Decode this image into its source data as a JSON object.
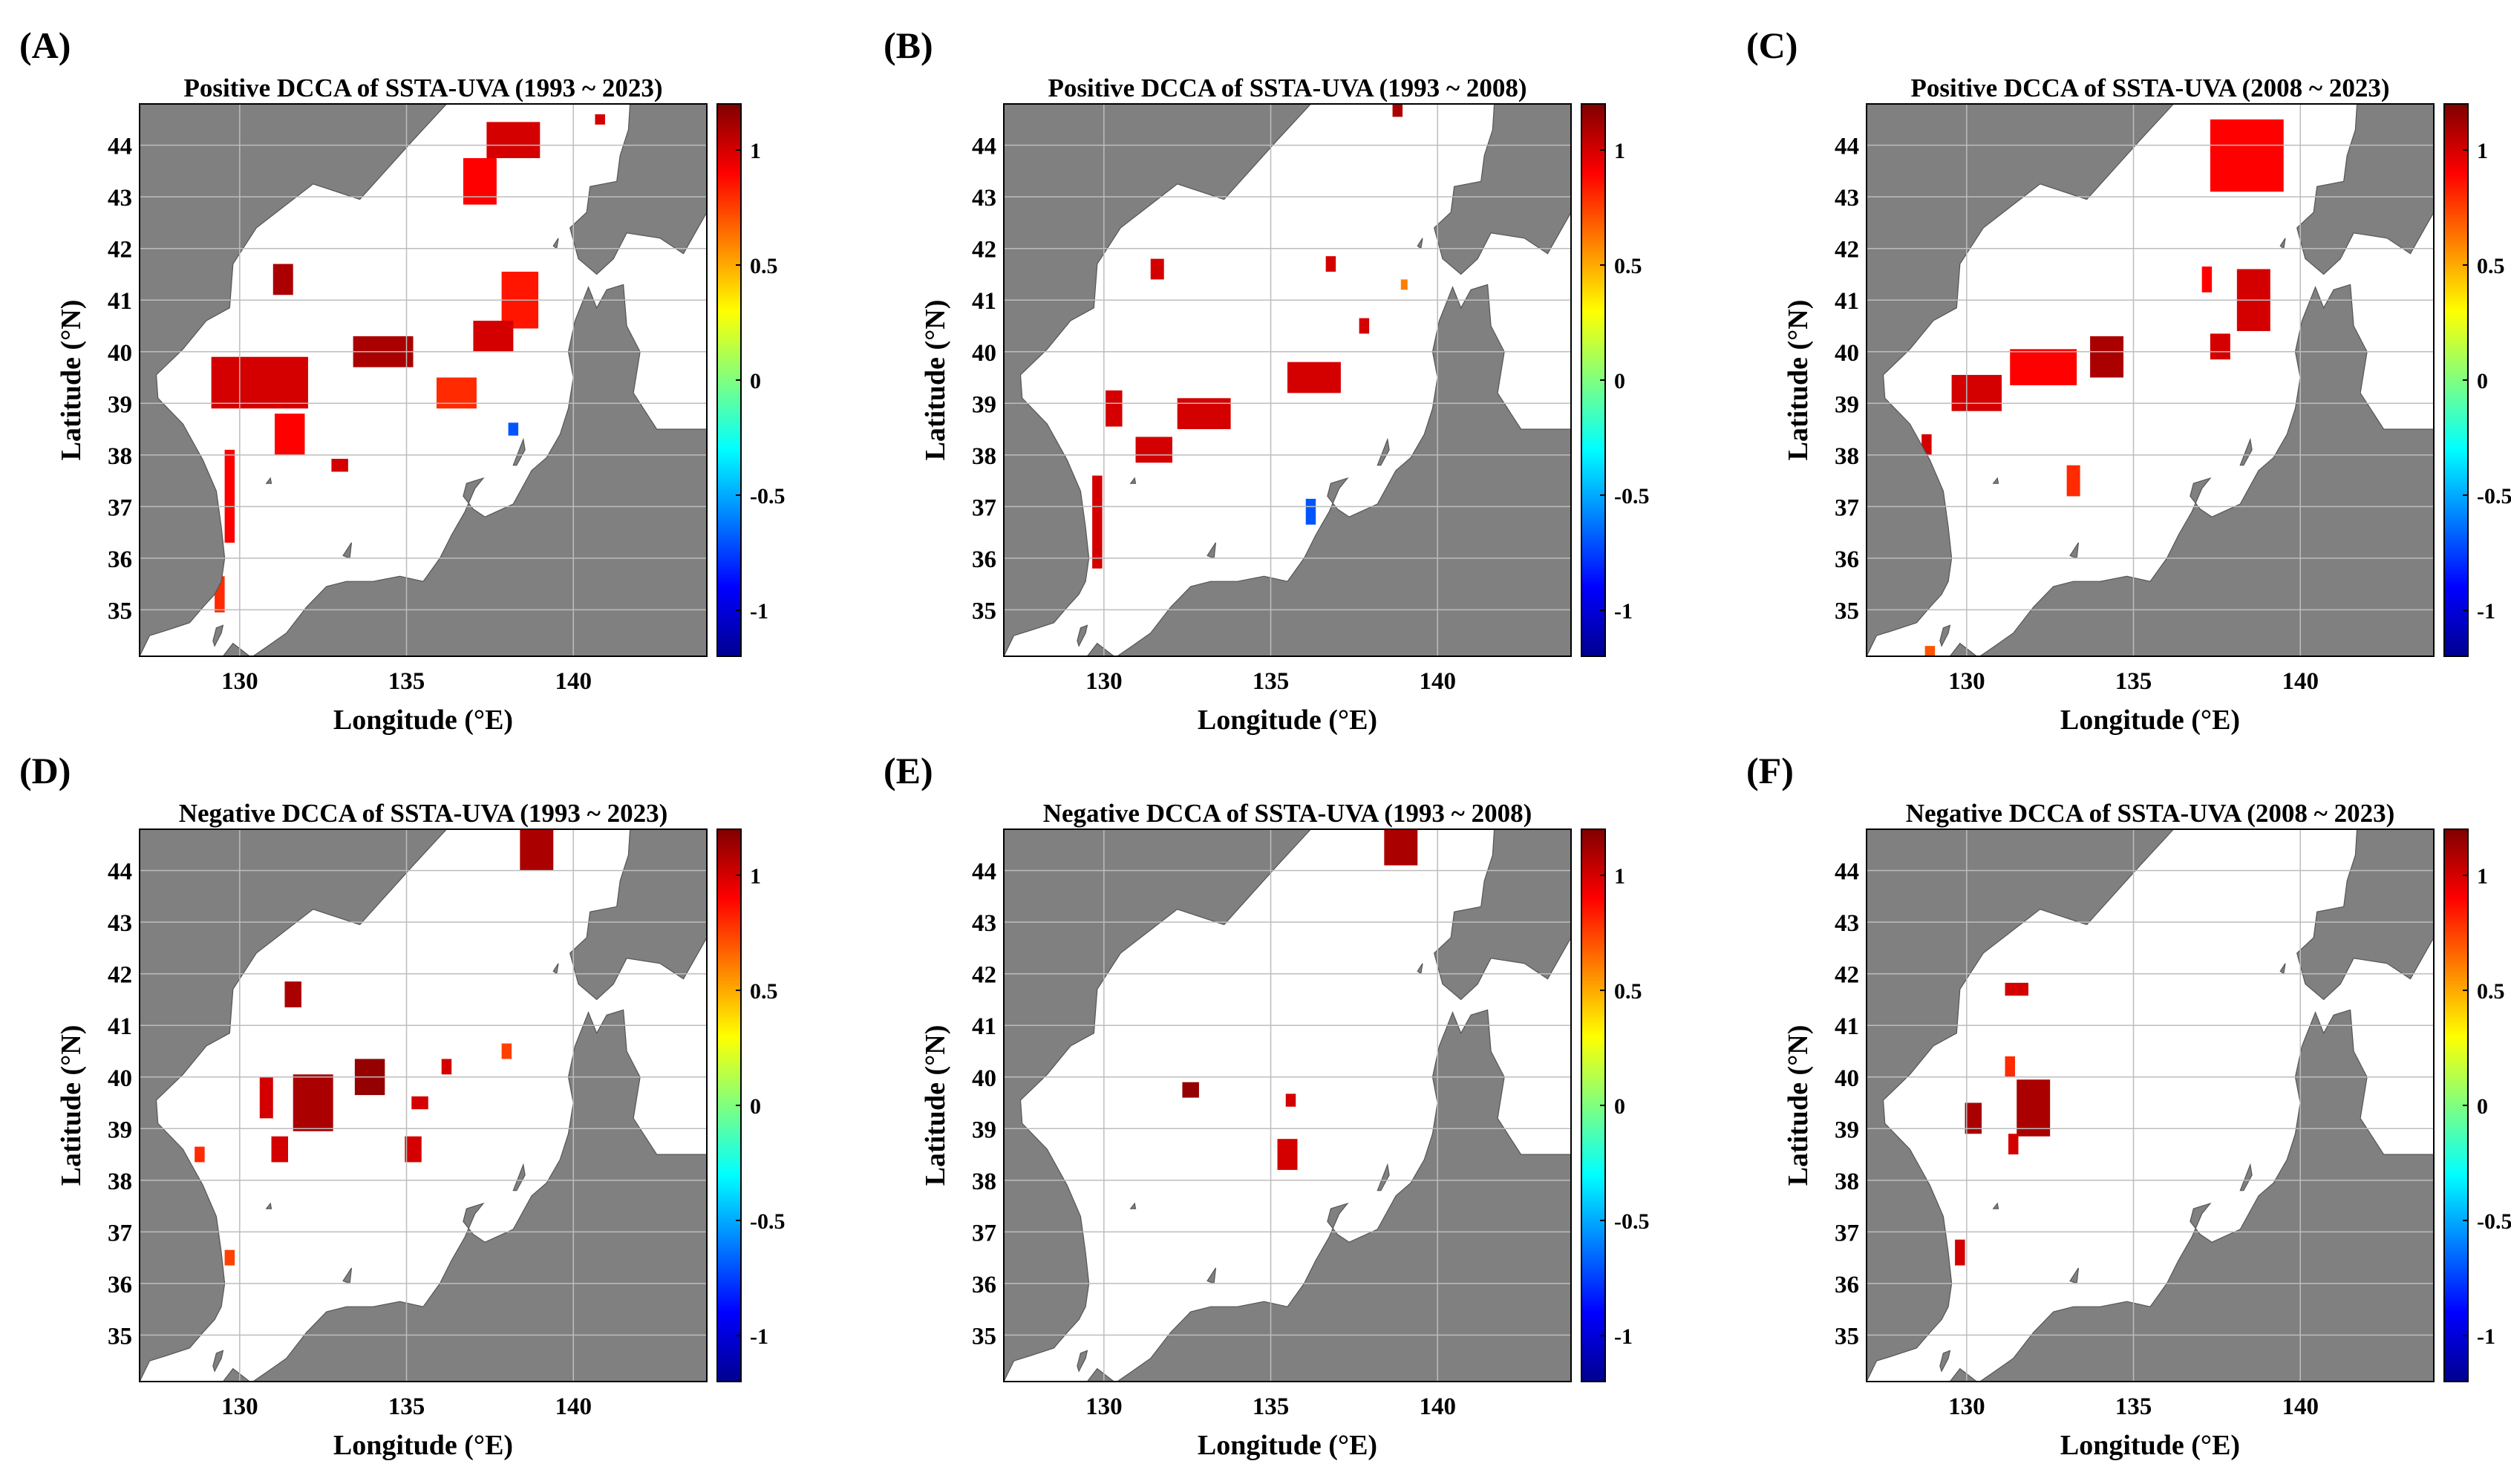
{
  "figure": {
    "xlabel": "Longitude (°E)",
    "ylabel": "Latitude (°N)",
    "xticks": [
      130,
      135,
      140
    ],
    "yticks": [
      35,
      36,
      37,
      38,
      39,
      40,
      41,
      42,
      43,
      44
    ],
    "xlim": [
      127,
      144
    ],
    "ylim": [
      34.1,
      44.8
    ],
    "colorbar": {
      "ticks": [
        -1,
        -0.5,
        0,
        0.5,
        1
      ],
      "tick_labels": [
        "-1",
        "-0.5",
        "0",
        "0.5",
        "1"
      ],
      "range": [
        -1.2,
        1.2
      ],
      "colormap": "jet"
    },
    "colors": {
      "land": "#808080",
      "sea": "#ffffff",
      "grid": "#bdbdbd"
    }
  },
  "chart_data": [
    {
      "type": "heatmap",
      "panel_label": "(A)",
      "title": "Positive DCCA of SSTA-UVA (1993 ~ 2023)",
      "cells": [
        {
          "lon": 138.2,
          "lat": 44.1,
          "w": 1.6,
          "h": 0.7,
          "v": 1.0
        },
        {
          "lon": 137.2,
          "lat": 43.3,
          "w": 1.0,
          "h": 0.9,
          "v": 0.9
        },
        {
          "lon": 140.8,
          "lat": 44.5,
          "w": 0.3,
          "h": 0.2,
          "v": 1.0
        },
        {
          "lon": 131.3,
          "lat": 41.4,
          "w": 0.6,
          "h": 0.6,
          "v": 1.1
        },
        {
          "lon": 130.6,
          "lat": 39.4,
          "w": 2.9,
          "h": 1.0,
          "v": 1.0
        },
        {
          "lon": 131.5,
          "lat": 38.4,
          "w": 0.9,
          "h": 0.8,
          "v": 0.9
        },
        {
          "lon": 134.3,
          "lat": 40.0,
          "w": 1.8,
          "h": 0.6,
          "v": 1.1
        },
        {
          "lon": 136.5,
          "lat": 39.2,
          "w": 1.2,
          "h": 0.6,
          "v": 0.8
        },
        {
          "lon": 138.4,
          "lat": 41.0,
          "w": 1.1,
          "h": 1.1,
          "v": 0.85
        },
        {
          "lon": 137.6,
          "lat": 40.3,
          "w": 1.2,
          "h": 0.6,
          "v": 1.0
        },
        {
          "lon": 129.7,
          "lat": 37.2,
          "w": 0.3,
          "h": 1.8,
          "v": 0.9
        },
        {
          "lon": 129.4,
          "lat": 35.3,
          "w": 0.3,
          "h": 0.7,
          "v": 0.8
        },
        {
          "lon": 133.0,
          "lat": 37.8,
          "w": 0.5,
          "h": 0.25,
          "v": 1.0
        },
        {
          "lon": 138.2,
          "lat": 38.5,
          "w": 0.3,
          "h": 0.25,
          "v": -0.7
        }
      ]
    },
    {
      "type": "heatmap",
      "panel_label": "(B)",
      "title": "Positive DCCA of SSTA-UVA (1993 ~ 2008)",
      "cells": [
        {
          "lon": 138.8,
          "lat": 44.7,
          "w": 0.3,
          "h": 0.3,
          "v": 1.1
        },
        {
          "lon": 131.6,
          "lat": 41.6,
          "w": 0.4,
          "h": 0.4,
          "v": 1.0
        },
        {
          "lon": 130.3,
          "lat": 38.9,
          "w": 0.5,
          "h": 0.7,
          "v": 1.0
        },
        {
          "lon": 131.5,
          "lat": 38.1,
          "w": 1.1,
          "h": 0.5,
          "v": 1.0
        },
        {
          "lon": 133.0,
          "lat": 38.8,
          "w": 1.6,
          "h": 0.6,
          "v": 1.0
        },
        {
          "lon": 136.3,
          "lat": 39.5,
          "w": 1.6,
          "h": 0.6,
          "v": 1.0
        },
        {
          "lon": 129.8,
          "lat": 36.7,
          "w": 0.3,
          "h": 1.8,
          "v": 1.0
        },
        {
          "lon": 136.2,
          "lat": 36.9,
          "w": 0.3,
          "h": 0.5,
          "v": -0.7
        },
        {
          "lon": 139.0,
          "lat": 41.3,
          "w": 0.2,
          "h": 0.2,
          "v": 0.6
        },
        {
          "lon": 136.8,
          "lat": 41.7,
          "w": 0.3,
          "h": 0.3,
          "v": 1.0
        },
        {
          "lon": 137.8,
          "lat": 40.5,
          "w": 0.3,
          "h": 0.3,
          "v": 1.0
        }
      ]
    },
    {
      "type": "heatmap",
      "panel_label": "(C)",
      "title": "Positive DCCA of SSTA-UVA (2008 ~ 2023)",
      "cells": [
        {
          "lon": 138.4,
          "lat": 43.8,
          "w": 2.2,
          "h": 1.4,
          "v": 0.9
        },
        {
          "lon": 138.6,
          "lat": 41.0,
          "w": 1.0,
          "h": 1.2,
          "v": 1.0
        },
        {
          "lon": 137.6,
          "lat": 40.1,
          "w": 0.6,
          "h": 0.5,
          "v": 1.0
        },
        {
          "lon": 130.3,
          "lat": 39.2,
          "w": 1.5,
          "h": 0.7,
          "v": 1.0
        },
        {
          "lon": 132.3,
          "lat": 39.7,
          "w": 2.0,
          "h": 0.7,
          "v": 0.9
        },
        {
          "lon": 134.2,
          "lat": 39.9,
          "w": 1.0,
          "h": 0.8,
          "v": 1.1
        },
        {
          "lon": 128.8,
          "lat": 38.2,
          "w": 0.3,
          "h": 0.4,
          "v": 1.0
        },
        {
          "lon": 133.2,
          "lat": 37.5,
          "w": 0.4,
          "h": 0.6,
          "v": 0.8
        },
        {
          "lon": 128.9,
          "lat": 34.2,
          "w": 0.3,
          "h": 0.2,
          "v": 0.7
        },
        {
          "lon": 137.2,
          "lat": 41.4,
          "w": 0.3,
          "h": 0.5,
          "v": 0.9
        }
      ]
    },
    {
      "type": "heatmap",
      "panel_label": "(D)",
      "title": "Negative DCCA of SSTA-UVA (1993 ~ 2023)",
      "cells": [
        {
          "lon": 138.9,
          "lat": 44.4,
          "w": 1.0,
          "h": 0.8,
          "v": 1.1
        },
        {
          "lon": 131.6,
          "lat": 41.6,
          "w": 0.5,
          "h": 0.5,
          "v": 1.1
        },
        {
          "lon": 132.2,
          "lat": 39.5,
          "w": 1.2,
          "h": 1.1,
          "v": 1.1
        },
        {
          "lon": 130.8,
          "lat": 39.6,
          "w": 0.4,
          "h": 0.8,
          "v": 1.0
        },
        {
          "lon": 133.9,
          "lat": 40.0,
          "w": 0.9,
          "h": 0.7,
          "v": 1.15
        },
        {
          "lon": 131.2,
          "lat": 38.6,
          "w": 0.5,
          "h": 0.5,
          "v": 1.0
        },
        {
          "lon": 135.4,
          "lat": 39.5,
          "w": 0.5,
          "h": 0.25,
          "v": 1.0
        },
        {
          "lon": 135.2,
          "lat": 38.6,
          "w": 0.5,
          "h": 0.5,
          "v": 1.0
        },
        {
          "lon": 136.2,
          "lat": 40.2,
          "w": 0.3,
          "h": 0.3,
          "v": 1.0
        },
        {
          "lon": 138.0,
          "lat": 40.5,
          "w": 0.3,
          "h": 0.3,
          "v": 0.75
        },
        {
          "lon": 128.8,
          "lat": 38.5,
          "w": 0.3,
          "h": 0.3,
          "v": 0.8
        },
        {
          "lon": 129.7,
          "lat": 36.5,
          "w": 0.3,
          "h": 0.3,
          "v": 0.75
        }
      ]
    },
    {
      "type": "heatmap",
      "panel_label": "(E)",
      "title": "Negative DCCA of SSTA-UVA (1993 ~ 2008)",
      "cells": [
        {
          "lon": 138.9,
          "lat": 44.45,
          "w": 1.0,
          "h": 0.7,
          "v": 1.1
        },
        {
          "lon": 132.6,
          "lat": 39.75,
          "w": 0.5,
          "h": 0.3,
          "v": 1.15
        },
        {
          "lon": 135.5,
          "lat": 38.5,
          "w": 0.6,
          "h": 0.6,
          "v": 1.0
        },
        {
          "lon": 135.6,
          "lat": 39.55,
          "w": 0.3,
          "h": 0.25,
          "v": 1.0
        }
      ]
    },
    {
      "type": "heatmap",
      "panel_label": "(F)",
      "title": "Negative DCCA of SSTA-UVA (2008 ~ 2023)",
      "cells": [
        {
          "lon": 131.5,
          "lat": 41.7,
          "w": 0.7,
          "h": 0.25,
          "v": 1.0
        },
        {
          "lon": 131.3,
          "lat": 40.2,
          "w": 0.3,
          "h": 0.4,
          "v": 0.8
        },
        {
          "lon": 132.0,
          "lat": 39.4,
          "w": 1.0,
          "h": 1.1,
          "v": 1.1
        },
        {
          "lon": 130.2,
          "lat": 39.2,
          "w": 0.5,
          "h": 0.6,
          "v": 1.1
        },
        {
          "lon": 131.4,
          "lat": 38.7,
          "w": 0.3,
          "h": 0.4,
          "v": 1.0
        },
        {
          "lon": 129.8,
          "lat": 36.6,
          "w": 0.3,
          "h": 0.5,
          "v": 1.0
        }
      ]
    }
  ]
}
